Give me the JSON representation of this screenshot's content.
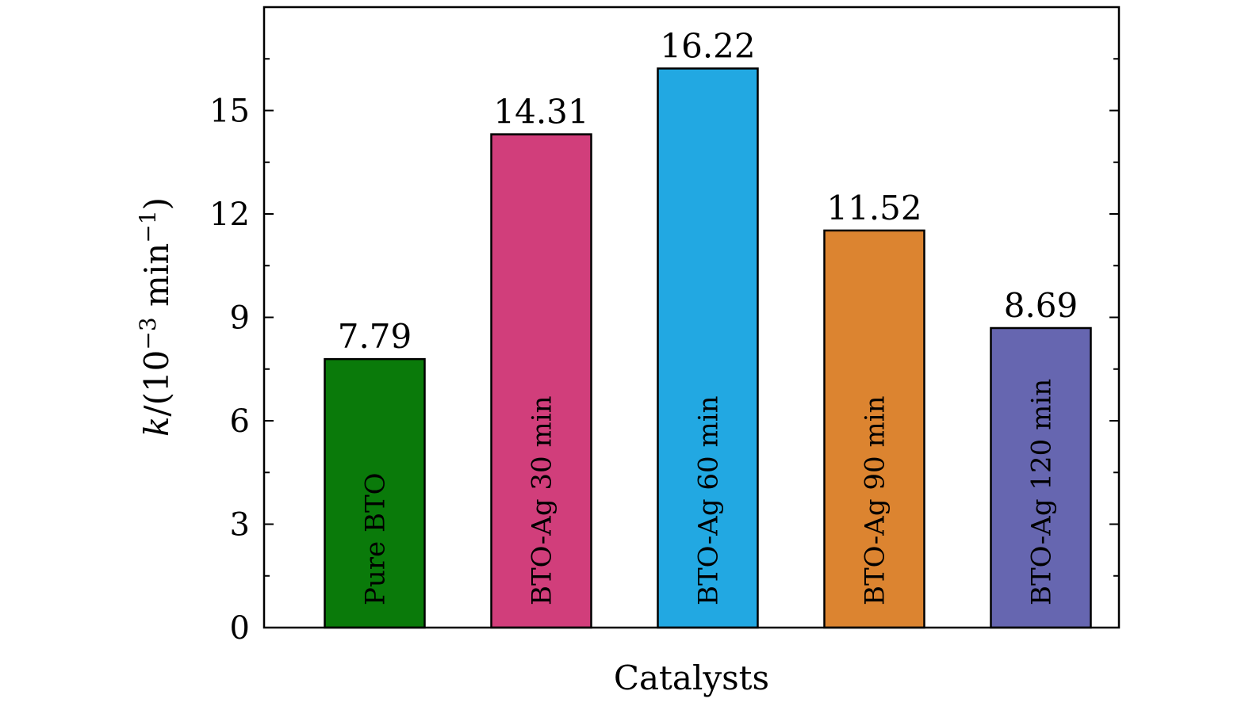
{
  "chart_data": {
    "type": "bar",
    "categories": [
      "Pure BTO",
      "BTO-Ag 30 min",
      "BTO-Ag 60 min",
      "BTO-Ag 90 min",
      "BTO-Ag 120 min"
    ],
    "values": [
      7.79,
      14.31,
      16.22,
      11.52,
      8.69
    ],
    "value_labels": [
      "7.79",
      "14.31",
      "16.22",
      "11.52",
      "8.69"
    ],
    "colors": [
      "#0a7a0a",
      "#d13e7b",
      "#22a8e2",
      "#dc8430",
      "#6666b0"
    ],
    "xlabel": "Catalysts",
    "ylabel": {
      "italic": "k",
      "text": "/(10",
      "sup1": "−3",
      "mid": " min",
      "sup2": "−1",
      "end": ")"
    },
    "ylim": [
      0,
      18
    ],
    "yticks": [
      0,
      3,
      6,
      9,
      12,
      15
    ],
    "ytick_labels": [
      "0",
      "3",
      "6",
      "9",
      "12",
      "15"
    ],
    "y_minor_step": 1.5,
    "grid": false,
    "legend": "none"
  }
}
